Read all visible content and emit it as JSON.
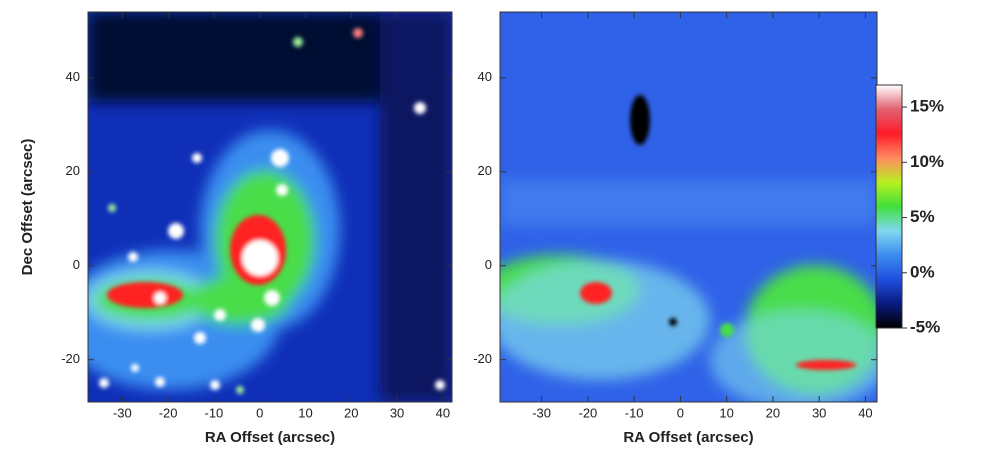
{
  "chart_data": [
    {
      "type": "image",
      "xlabel": "RA Offset (arcsec)",
      "ylabel": "Dec Offset (arcsec)",
      "xlim": [
        -37.5,
        42
      ],
      "ylim": [
        -29,
        54
      ],
      "xticks": [
        -30,
        -20,
        -10,
        0,
        10,
        20,
        30,
        40
      ],
      "yticks": [
        -20,
        0,
        20,
        40
      ]
    },
    {
      "type": "image",
      "xlabel": "RA Offset (arcsec)",
      "xlim": [
        -39,
        42.5
      ],
      "ylim": [
        -29,
        54
      ],
      "xticks": [
        -30,
        -20,
        -10,
        0,
        10,
        20,
        30,
        40
      ],
      "yticks": [
        -20,
        0,
        20,
        40
      ]
    },
    {
      "type": "colorbar",
      "ylim": [
        -5,
        17
      ],
      "colors": [
        "#000000",
        "#0a1a80",
        "#1f4fe0",
        "#3c8cf0",
        "#7fd8f0",
        "#3fe03a",
        "#b8f020",
        "#ff8a60",
        "#ff1a2a",
        "#e06070",
        "#ffffff"
      ],
      "yticks": [
        {
          "value": -5,
          "label": "-5%"
        },
        {
          "value": 0,
          "label": "0%"
        },
        {
          "value": 5,
          "label": "5%"
        },
        {
          "value": 10,
          "label": "10%"
        },
        {
          "value": 15,
          "label": "15%"
        }
      ]
    }
  ]
}
